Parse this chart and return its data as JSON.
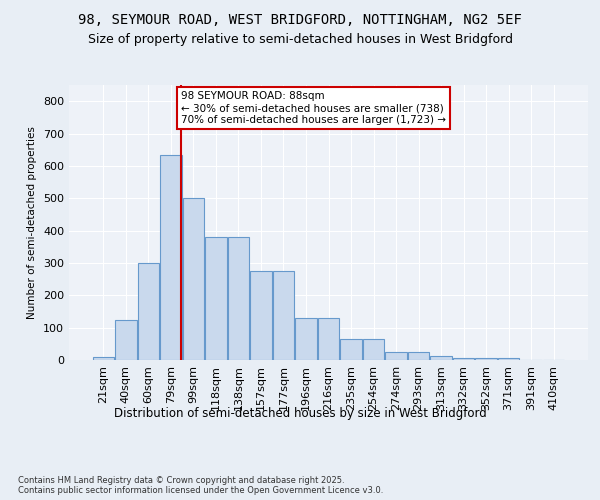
{
  "title1": "98, SEYMOUR ROAD, WEST BRIDGFORD, NOTTINGHAM, NG2 5EF",
  "title2": "Size of property relative to semi-detached houses in West Bridgford",
  "xlabel": "Distribution of semi-detached houses by size in West Bridgford",
  "ylabel": "Number of semi-detached properties",
  "footnote": "Contains HM Land Registry data © Crown copyright and database right 2025.\nContains public sector information licensed under the Open Government Licence v3.0.",
  "bar_labels": [
    "21sqm",
    "40sqm",
    "60sqm",
    "79sqm",
    "99sqm",
    "118sqm",
    "138sqm",
    "157sqm",
    "177sqm",
    "196sqm",
    "216sqm",
    "235sqm",
    "254sqm",
    "274sqm",
    "293sqm",
    "313sqm",
    "332sqm",
    "352sqm",
    "371sqm",
    "391sqm",
    "410sqm"
  ],
  "bar_values": [
    10,
    125,
    300,
    635,
    500,
    380,
    380,
    275,
    275,
    130,
    130,
    65,
    65,
    25,
    25,
    12,
    5,
    5,
    5,
    0,
    0
  ],
  "bar_color": "#c9d9ed",
  "bar_edge_color": "#6699cc",
  "vline_color": "#cc0000",
  "subject_label": "98 SEYMOUR ROAD: 88sqm",
  "pct_smaller": "30% of semi-detached houses are smaller (738)",
  "pct_larger": "70% of semi-detached houses are larger (1,723)",
  "annotation_box_color": "#cc0000",
  "ylim": [
    0,
    850
  ],
  "yticks": [
    0,
    100,
    200,
    300,
    400,
    500,
    600,
    700,
    800
  ],
  "bg_color": "#e8eef5",
  "plot_bg_color": "#eef2f8",
  "title1_fontsize": 10,
  "title2_fontsize": 9,
  "vline_pos": 3.45
}
